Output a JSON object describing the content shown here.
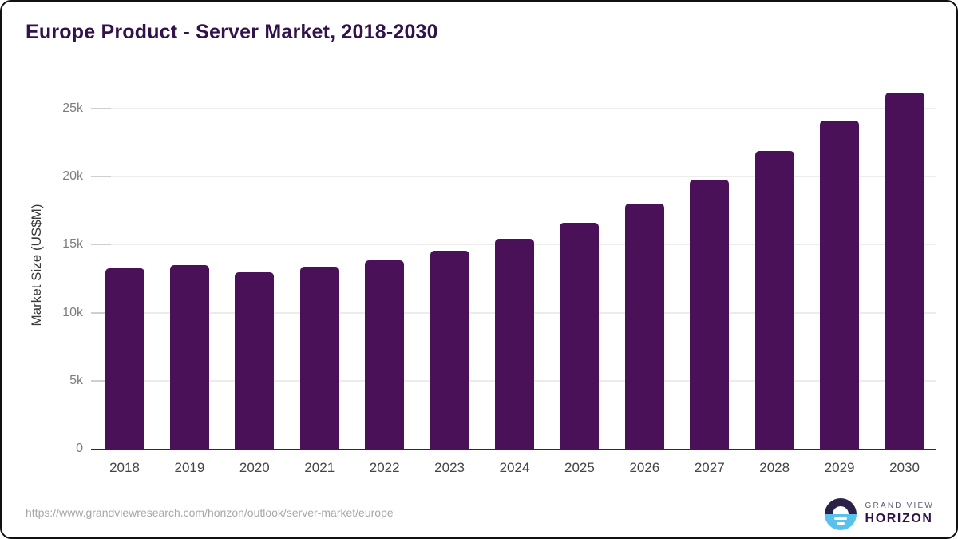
{
  "title": "Europe Product - Server Market, 2018-2030",
  "y_axis": {
    "title": "Market Size (US$M)",
    "tick_labels": [
      "0",
      "5k",
      "10k",
      "15k",
      "20k",
      "25k"
    ]
  },
  "footer": {
    "source_url": "https://www.grandviewresearch.com/horizon/outlook/server-market/europe",
    "logo": {
      "top": "GRAND VIEW",
      "bottom": "HORIZON"
    }
  },
  "colors": {
    "bar": "#4a1158",
    "title": "#31124b",
    "gridline": "#ececec",
    "axis_line": "#2b2b2b",
    "y_tick_label": "#7d7d7d",
    "x_tick_label": "#454545",
    "source_url": "#a8a8a8",
    "logo_blue": "#58c1ee",
    "logo_dark_half": "#2b2147",
    "logo_wordmark": "#2e1247",
    "logo_small_text": "#5c5c6e"
  },
  "chart_data": {
    "type": "bar",
    "title": "Europe Product - Server Market, 2018-2030",
    "xlabel": "",
    "ylabel": "Market Size (US$M)",
    "categories": [
      "2018",
      "2019",
      "2020",
      "2021",
      "2022",
      "2023",
      "2024",
      "2025",
      "2026",
      "2027",
      "2028",
      "2029",
      "2030"
    ],
    "values": [
      13250,
      13480,
      13000,
      13380,
      13850,
      14550,
      15430,
      16600,
      18000,
      19800,
      21900,
      24100,
      26150
    ],
    "unit": "US$M",
    "ylim": [
      0,
      27000
    ],
    "ytick_step": 5000,
    "ytick_values": [
      0,
      5000,
      10000,
      15000,
      20000,
      25000
    ],
    "grid": true,
    "legend_position": "none",
    "bar_color": "#4a1158"
  }
}
